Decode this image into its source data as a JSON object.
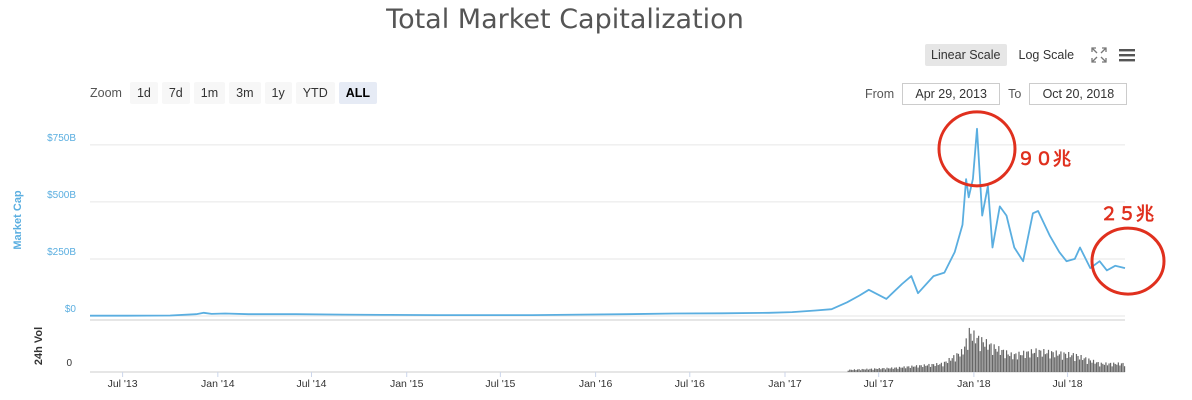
{
  "header": {
    "title": "Total Market Capitalization"
  },
  "scale": {
    "linear_label": "Linear Scale",
    "log_label": "Log Scale",
    "active": "linear"
  },
  "zoom": {
    "label": "Zoom",
    "options": [
      "1d",
      "7d",
      "1m",
      "3m",
      "1y",
      "YTD",
      "ALL"
    ],
    "active": "ALL"
  },
  "range": {
    "from_label": "From",
    "from_value": "Apr 29, 2013",
    "to_label": "To",
    "to_value": "Oct 20, 2018"
  },
  "icons": {
    "fullscreen": "fullscreen-icon",
    "menu": "hamburger-menu-icon"
  },
  "colors": {
    "line": "#5aaee0",
    "volume": "#666666",
    "annotation": "#e0301e",
    "grid": "#e6e6e6"
  },
  "chart_data": {
    "type": "line",
    "title": "Total Market Capitalization",
    "ylabel": "Market Cap",
    "y_ticks": [
      "$0",
      "$250B",
      "$500B",
      "$750B"
    ],
    "ylim": [
      0,
      850
    ],
    "y_unit": "billion USD",
    "x_ticks": [
      "Jul '13",
      "Jan '14",
      "Jul '14",
      "Jan '15",
      "Jul '15",
      "Jan '16",
      "Jul '16",
      "Jan '17",
      "Jul '17",
      "Jan '18",
      "Jul '18"
    ],
    "xlim": [
      "2013-04-29",
      "2018-10-20"
    ],
    "series": [
      {
        "values": [
          [
            "2013-04-29",
            1.5
          ],
          [
            "2013-07-01",
            1.2
          ],
          [
            "2013-10-01",
            2
          ],
          [
            "2013-11-20",
            8
          ],
          [
            "2013-12-05",
            14
          ],
          [
            "2013-12-20",
            9
          ],
          [
            "2014-01-15",
            11
          ],
          [
            "2014-03-01",
            8
          ],
          [
            "2014-06-01",
            8
          ],
          [
            "2014-09-01",
            6
          ],
          [
            "2014-12-01",
            5
          ],
          [
            "2015-03-01",
            4
          ],
          [
            "2015-06-01",
            4
          ],
          [
            "2015-09-01",
            4
          ],
          [
            "2015-12-01",
            6
          ],
          [
            "2016-03-01",
            8
          ],
          [
            "2016-06-01",
            11
          ],
          [
            "2016-09-01",
            12
          ],
          [
            "2016-12-01",
            14
          ],
          [
            "2017-01-15",
            17
          ],
          [
            "2017-03-01",
            24
          ],
          [
            "2017-04-01",
            30
          ],
          [
            "2017-05-01",
            60
          ],
          [
            "2017-05-25",
            90
          ],
          [
            "2017-06-12",
            115
          ],
          [
            "2017-07-16",
            75
          ],
          [
            "2017-08-15",
            140
          ],
          [
            "2017-09-02",
            175
          ],
          [
            "2017-09-15",
            100
          ],
          [
            "2017-10-15",
            175
          ],
          [
            "2017-11-05",
            190
          ],
          [
            "2017-11-25",
            280
          ],
          [
            "2017-12-10",
            400
          ],
          [
            "2017-12-17",
            600
          ],
          [
            "2017-12-22",
            520
          ],
          [
            "2017-12-30",
            600
          ],
          [
            "2018-01-07",
            820
          ],
          [
            "2018-01-17",
            440
          ],
          [
            "2018-01-28",
            570
          ],
          [
            "2018-02-06",
            300
          ],
          [
            "2018-02-20",
            480
          ],
          [
            "2018-03-05",
            440
          ],
          [
            "2018-03-20",
            300
          ],
          [
            "2018-04-06",
            240
          ],
          [
            "2018-04-25",
            450
          ],
          [
            "2018-05-05",
            460
          ],
          [
            "2018-05-28",
            350
          ],
          [
            "2018-06-15",
            280
          ],
          [
            "2018-06-29",
            240
          ],
          [
            "2018-07-15",
            250
          ],
          [
            "2018-07-25",
            300
          ],
          [
            "2018-08-14",
            210
          ],
          [
            "2018-09-01",
            240
          ],
          [
            "2018-09-15",
            200
          ],
          [
            "2018-10-01",
            220
          ],
          [
            "2018-10-20",
            210
          ]
        ]
      }
    ],
    "volume": {
      "ylabel": "24h Vol",
      "y_ticks": [
        "0"
      ],
      "relative_values": [
        [
          "2017-05-01",
          0.05
        ],
        [
          "2017-08-01",
          0.1
        ],
        [
          "2017-11-01",
          0.2
        ],
        [
          "2017-12-10",
          0.5
        ],
        [
          "2017-12-22",
          0.95
        ],
        [
          "2018-01-07",
          0.8
        ],
        [
          "2018-02-06",
          0.6
        ],
        [
          "2018-03-15",
          0.4
        ],
        [
          "2018-05-01",
          0.5
        ],
        [
          "2018-07-15",
          0.4
        ],
        [
          "2018-09-01",
          0.2
        ],
        [
          "2018-10-20",
          0.2
        ]
      ]
    },
    "annotations": [
      {
        "text": "９０兆",
        "near": "peak"
      },
      {
        "text": "２５兆",
        "near": "latest"
      }
    ]
  }
}
